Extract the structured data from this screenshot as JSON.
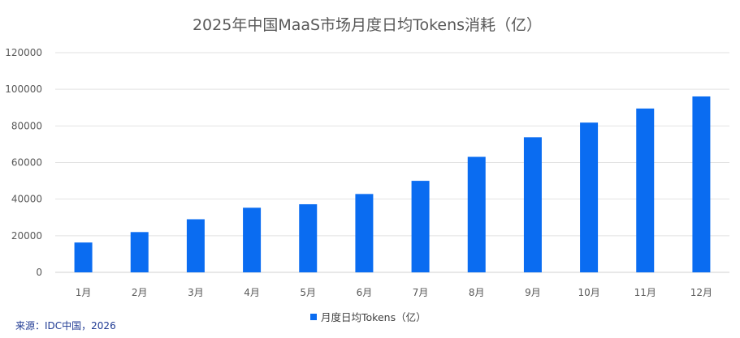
{
  "source": "来源：IDC中国，2026",
  "chart_data": {
    "type": "bar",
    "title": "2025年中国MaaS市场月度日均Tokens消耗（亿）",
    "categories": [
      "1月",
      "2月",
      "3月",
      "4月",
      "5月",
      "6月",
      "7月",
      "8月",
      "9月",
      "10月",
      "11月",
      "12月"
    ],
    "series": [
      {
        "name": "月度日均Tokens（亿）",
        "color": "#0a6cf1",
        "values": [
          16300,
          22000,
          29000,
          35300,
          37200,
          42800,
          50000,
          63100,
          73800,
          81800,
          89500,
          96100
        ]
      }
    ],
    "yticks": [
      "0",
      "20000",
      "40000",
      "60000",
      "80000",
      "100000",
      "120000"
    ],
    "ylim": [
      0,
      120000
    ],
    "grid": true,
    "legend": "bottom"
  }
}
